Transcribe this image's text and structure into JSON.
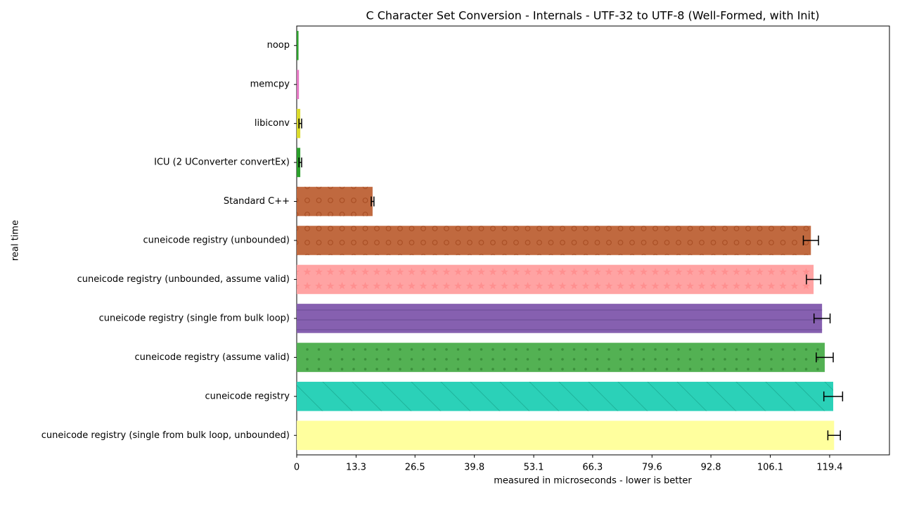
{
  "chart_data": {
    "type": "barh",
    "title": "C Character Set Conversion - Internals - UTF-32 to UTF-8 (Well-Formed, with Init)",
    "xlabel": "measured in microseconds - lower is better",
    "ylabel": "real time",
    "categories": [
      "noop",
      "memcpy",
      "libiconv",
      "ICU (2 UConverter convertEx)",
      "Standard C++",
      "cuneicode registry (unbounded)",
      "cuneicode registry (unbounded, assume valid)",
      "cuneicode registry (single from bulk loop)",
      "cuneicode registry (assume valid)",
      "cuneicode registry",
      "cuneicode registry (single from bulk loop, unbounded)"
    ],
    "values": [
      0.4,
      0.5,
      0.8,
      0.8,
      17.0,
      115.2,
      115.8,
      117.7,
      118.3,
      120.2,
      120.4
    ],
    "errors": [
      0,
      0,
      0.3,
      0.3,
      0.3,
      1.7,
      1.6,
      1.8,
      1.9,
      2.1,
      1.4
    ],
    "colors": [
      "#2ca02c",
      "#e377c2",
      "#dbdb2d",
      "#2ca02c",
      "#c0693f",
      "#c0693f",
      "#ffa3a3",
      "#8660b0",
      "#53b153",
      "#2bd1b8",
      "#ffff9e"
    ],
    "patterns": [
      "none",
      "none",
      "none",
      "none",
      "circles",
      "circles",
      "stars",
      "lines",
      "dots",
      "diagonal",
      "none"
    ],
    "xlim": [
      0,
      132.8
    ],
    "xticks": [
      0,
      13.3,
      26.5,
      39.8,
      53.1,
      66.3,
      79.6,
      92.8,
      106.1,
      119.4
    ]
  }
}
